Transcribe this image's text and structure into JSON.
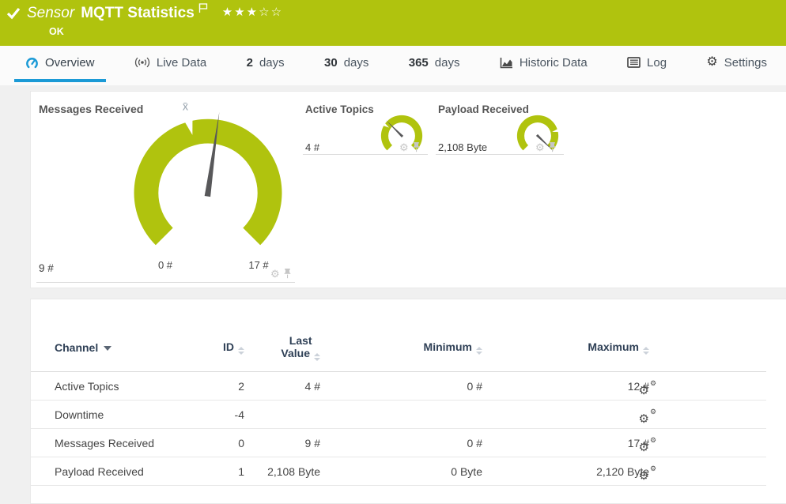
{
  "colors": {
    "brand_green": "#b0c30e",
    "accent_blue": "#1b9ad6",
    "gauge_green": "#b0c30e"
  },
  "header": {
    "kind_label": "Sensor",
    "title": "MQTT Statistics",
    "status": "OK",
    "stars_filled": 3,
    "stars_total": 5,
    "rating_display": "★★★☆☆"
  },
  "tabs": [
    {
      "label": "Overview",
      "icon": "gauge-icon",
      "active": true
    },
    {
      "label": "Live Data",
      "icon": "live-data-icon"
    },
    {
      "prefix": "2",
      "label": "days"
    },
    {
      "prefix": "30",
      "label": "days"
    },
    {
      "prefix": "365",
      "label": "days"
    },
    {
      "label": "Historic Data",
      "icon": "historic-data-icon"
    },
    {
      "label": "Log",
      "icon": "log-icon"
    },
    {
      "label": "Settings",
      "icon": "gear-icon"
    }
  ],
  "gauges": {
    "main": {
      "title": "Messages Received",
      "value": "9 #",
      "min_label": "0 #",
      "max_label": "17 #",
      "avg_marker": "x̄",
      "needle_deg": 8,
      "notch_deg": -15
    },
    "active_topics": {
      "title": "Active Topics",
      "value": "4 #",
      "needle_deg": -45,
      "notch_deg": -57
    },
    "payload": {
      "title": "Payload Received",
      "value": "2,108 Byte",
      "needle_deg": 134,
      "notch_deg": 75
    }
  },
  "table": {
    "columns": [
      {
        "label": "Channel",
        "sorted": "desc"
      },
      {
        "label": "ID"
      },
      {
        "line1": "Last",
        "line2": "Value"
      },
      {
        "label": "Minimum"
      },
      {
        "label": "Maximum"
      }
    ],
    "rows": [
      {
        "channel": "Active Topics",
        "id": "2",
        "last": "4 #",
        "min": "0 #",
        "max": "12 #"
      },
      {
        "channel": "Downtime",
        "id": "-4",
        "last": "",
        "min": "",
        "max": ""
      },
      {
        "channel": "Messages Received",
        "id": "0",
        "last": "9 #",
        "min": "0 #",
        "max": "17 #"
      },
      {
        "channel": "Payload Received",
        "id": "1",
        "last": "2,108 Byte",
        "min": "0 Byte",
        "max": "2,120 Byte"
      }
    ]
  }
}
